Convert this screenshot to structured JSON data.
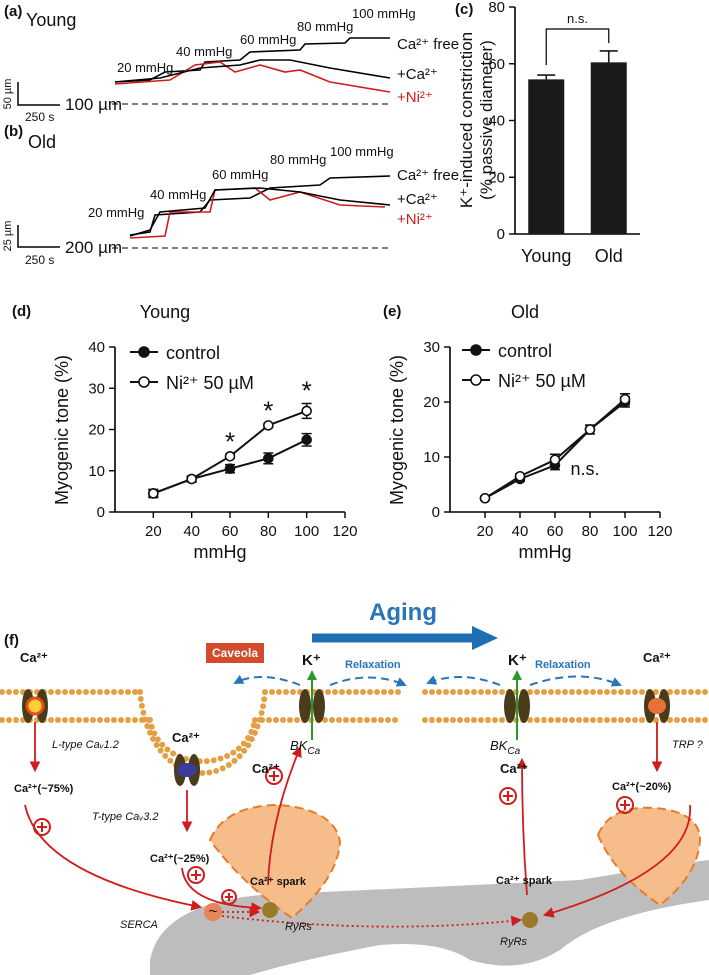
{
  "panel_a": {
    "label": "(a)",
    "title": "Young",
    "pressures": [
      "20 mmHg",
      "40 mmHg",
      "60 mmHg",
      "80 mmHg",
      "100 mmHg"
    ],
    "traces": [
      "Ca²⁺ free",
      "+Ca²⁺",
      "+Ni²⁺"
    ],
    "scale_y": "50 µm",
    "scale_x": "250 s",
    "baseline": "100 µm"
  },
  "panel_b": {
    "label": "(b)",
    "title": "Old",
    "pressures": [
      "20 mmHg",
      "40 mmHg",
      "60 mmHg",
      "80 mmHg",
      "100 mmHg"
    ],
    "traces": [
      "Ca²⁺ free",
      "+Ca²⁺",
      "+Ni²⁺"
    ],
    "scale_y": "25 µm",
    "scale_x": "250 s",
    "baseline": "200 µm"
  },
  "chart_data": [
    {
      "type": "bar",
      "label": "(c)",
      "y_label": [
        "K⁺-induced constriction",
        "(% passive diameter)"
      ],
      "categories": [
        "Young",
        "Old"
      ],
      "values": [
        54.5,
        60.5
      ],
      "errors": [
        1.5,
        4
      ],
      "color": "#1a1a1a",
      "ylim": [
        0,
        80
      ],
      "yticks": [
        0,
        20,
        40,
        60,
        80
      ],
      "annotation": "n.s."
    },
    {
      "type": "line",
      "label": "(d)",
      "title": "Young",
      "x_label": "mmHg",
      "y_label": "Myogenic tone (%)",
      "x": [
        20,
        40,
        60,
        80,
        100
      ],
      "series": [
        {
          "name": "control",
          "color": "#111111",
          "marker": "filled",
          "values": [
            4.5,
            8,
            10.5,
            13,
            17.5
          ],
          "errors": [
            0.8,
            0.7,
            1,
            1.3,
            1.5
          ]
        },
        {
          "name": "Ni²⁺ 50 µM",
          "color": "#111111",
          "marker": "open",
          "values": [
            4.5,
            8,
            13.5,
            21,
            24.5
          ],
          "errors": [
            1,
            0.7,
            0.5,
            0.5,
            1.8
          ]
        }
      ],
      "xlim": [
        0,
        120
      ],
      "xticks": [
        20,
        40,
        60,
        80,
        100,
        120
      ],
      "ylim": [
        0,
        40
      ],
      "yticks": [
        0,
        10,
        20,
        30,
        40
      ],
      "annotations": [
        {
          "text": "*",
          "x": 60
        },
        {
          "text": "*",
          "x": 80
        },
        {
          "text": "*",
          "x": 100
        }
      ]
    },
    {
      "type": "line",
      "label": "(e)",
      "title": "Old",
      "x_label": "mmHg",
      "y_label": "Myogenic tone (%)",
      "x": [
        20,
        40,
        60,
        80,
        100
      ],
      "series": [
        {
          "name": "control",
          "color": "#111111",
          "marker": "filled",
          "values": [
            2.5,
            6,
            8.5,
            15,
            20
          ],
          "errors": [
            0.3,
            0.4,
            0.8,
            0.8,
            0.9
          ]
        },
        {
          "name": "Ni²⁺ 50 µM",
          "color": "#111111",
          "marker": "open",
          "values": [
            2.5,
            6.5,
            9.5,
            15,
            20.5
          ],
          "errors": [
            0.3,
            0.4,
            1,
            0.8,
            1
          ]
        }
      ],
      "xlim": [
        0,
        120
      ],
      "xticks": [
        20,
        40,
        60,
        80,
        100,
        120
      ],
      "ylim": [
        0,
        30
      ],
      "yticks": [
        0,
        10,
        20,
        30
      ],
      "note": "n.s."
    }
  ],
  "diagram": {
    "label": "(f)",
    "title": "Aging",
    "ca_ltype": "Ca²⁺",
    "ca_ttype": "Ca²⁺",
    "ca_trp": "Ca²⁺",
    "caveola": "Caveola",
    "k_left": "K⁺",
    "k_right": "K⁺",
    "relax_left": "Relaxation",
    "relax_right": "Relaxation",
    "ltype": "L-type Caᵥ1.2",
    "ttype": "T-type Caᵥ3.2",
    "bk_left": {
      "main": "BK",
      "sub": "Ca"
    },
    "bk_right": {
      "main": "BK",
      "sub": "Ca"
    },
    "trp": "TRP ?",
    "ca_bk_left": "Ca²⁺",
    "ca_bk_right": "Ca²⁺",
    "frac_left": "Ca²⁺(~75%)",
    "frac_cav": "Ca²⁺(~25%)",
    "frac_right": "Ca²⁺(~20%)",
    "spark_left": "Ca²⁺ spark",
    "spark_right": "Ca²⁺ spark",
    "serca": "SERCA",
    "serca_symbol": "~",
    "ryr_left": "RyRs",
    "ryr_right": "RyRs"
  }
}
